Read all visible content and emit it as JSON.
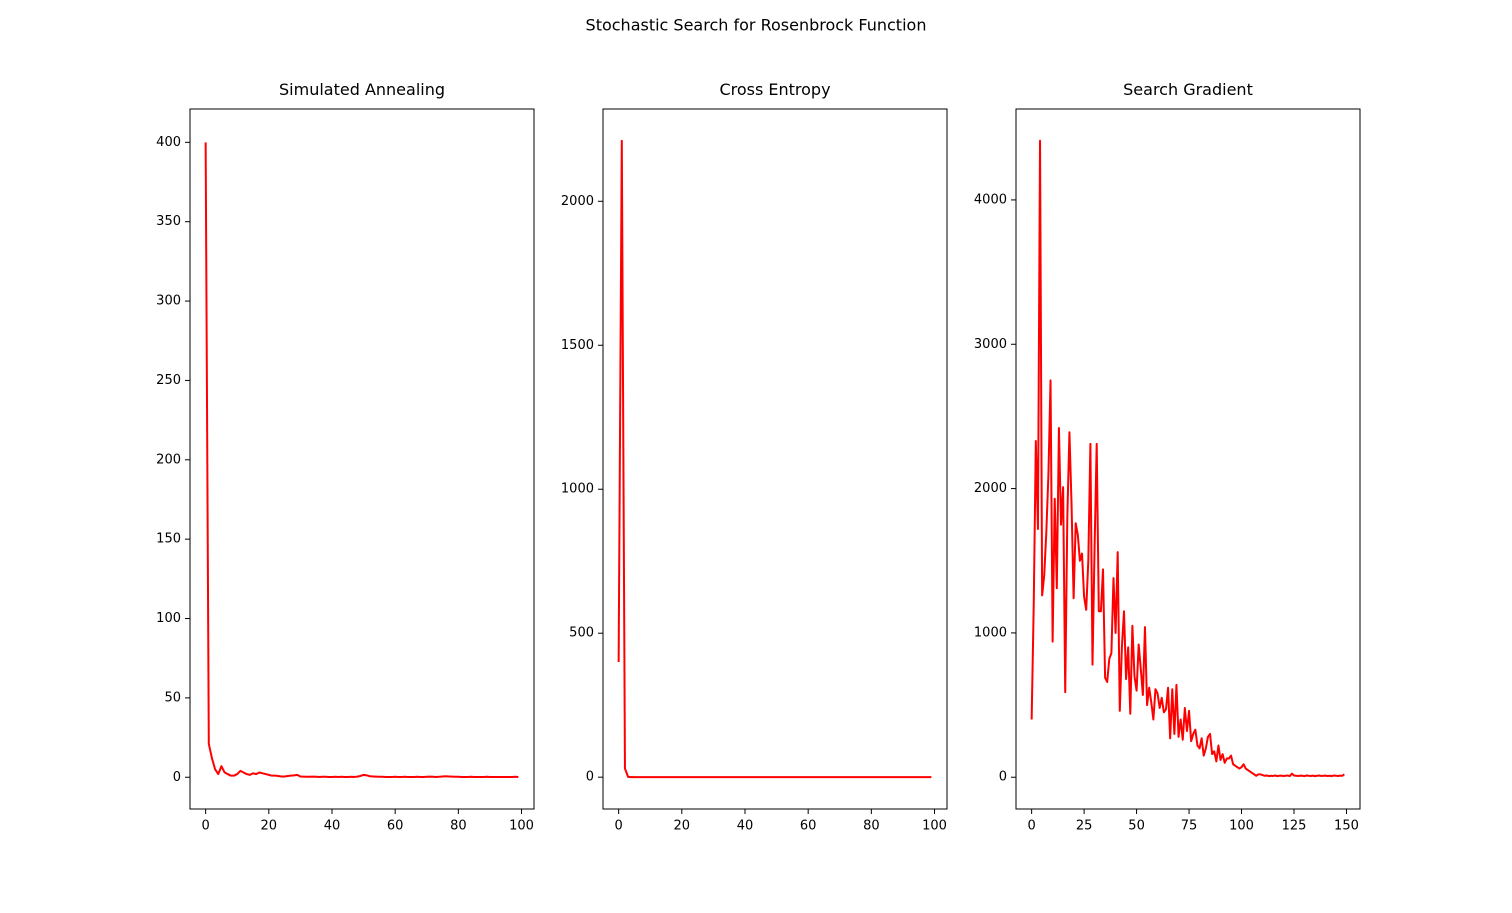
{
  "figure_title": "Stochastic Search for Rosenbrock Function",
  "chart_data": [
    {
      "type": "line",
      "title": "Simulated Annealing",
      "x": [
        0,
        1,
        2,
        3,
        4,
        5,
        6,
        7,
        8,
        9,
        10,
        11,
        12,
        13,
        14,
        15,
        16,
        17,
        18,
        19,
        20,
        21,
        22,
        23,
        24,
        25,
        26,
        27,
        28,
        29,
        30,
        31,
        32,
        33,
        34,
        35,
        36,
        37,
        38,
        39,
        40,
        41,
        42,
        43,
        44,
        45,
        46,
        47,
        48,
        49,
        50,
        51,
        52,
        53,
        54,
        55,
        56,
        57,
        58,
        59,
        60,
        61,
        62,
        63,
        64,
        65,
        66,
        67,
        68,
        69,
        70,
        71,
        72,
        73,
        74,
        75,
        76,
        77,
        78,
        79,
        80,
        81,
        82,
        83,
        84,
        85,
        86,
        87,
        88,
        89,
        90,
        91,
        92,
        93,
        94,
        95,
        96,
        97,
        98,
        99
      ],
      "series": [
        {
          "color": "#ff0000",
          "values": [
            400,
            21,
            12,
            5,
            2,
            7,
            3,
            2,
            1,
            1,
            2,
            4,
            3,
            2,
            1.5,
            2.5,
            2,
            3,
            2.5,
            2,
            1.5,
            1,
            1,
            0.8,
            0.5,
            0.5,
            0.8,
            1,
            1.2,
            1.5,
            0.5,
            0.4,
            0.3,
            0.3,
            0.4,
            0.3,
            0.2,
            0.3,
            0.3,
            0.2,
            0.2,
            0.3,
            0.2,
            0.3,
            0.2,
            0.2,
            0.3,
            0.2,
            0.4,
            0.8,
            1.5,
            1.2,
            0.6,
            0.5,
            0.4,
            0.3,
            0.3,
            0.2,
            0.2,
            0.2,
            0.3,
            0.2,
            0.2,
            0.3,
            0.2,
            0.2,
            0.2,
            0.3,
            0.2,
            0.2,
            0.3,
            0.4,
            0.3,
            0.2,
            0.3,
            0.5,
            0.6,
            0.5,
            0.4,
            0.3,
            0.3,
            0.2,
            0.2,
            0.2,
            0.3,
            0.2,
            0.2,
            0.2,
            0.2,
            0.3,
            0.2,
            0.2,
            0.2,
            0.2,
            0.2,
            0.2,
            0.2,
            0.2,
            0.3,
            0.2
          ]
        }
      ],
      "xlim": [
        -4.95,
        103.95
      ],
      "xticks": [
        0,
        20,
        40,
        60,
        80,
        100
      ],
      "ylim": [
        -20,
        421
      ],
      "yticks": [
        0,
        50,
        100,
        150,
        200,
        250,
        300,
        350,
        400
      ]
    },
    {
      "type": "line",
      "title": "Cross Entropy",
      "x": [
        0,
        1,
        2,
        3,
        4,
        5,
        6,
        7,
        8,
        9,
        10,
        11,
        12,
        13,
        14,
        15,
        16,
        17,
        18,
        19,
        20,
        21,
        22,
        23,
        24,
        25,
        26,
        27,
        28,
        29,
        30,
        31,
        32,
        33,
        34,
        35,
        36,
        37,
        38,
        39,
        40,
        41,
        42,
        43,
        44,
        45,
        46,
        47,
        48,
        49,
        50,
        51,
        52,
        53,
        54,
        55,
        56,
        57,
        58,
        59,
        60,
        61,
        62,
        63,
        64,
        65,
        66,
        67,
        68,
        69,
        70,
        71,
        72,
        73,
        74,
        75,
        76,
        77,
        78,
        79,
        80,
        81,
        82,
        83,
        84,
        85,
        86,
        87,
        88,
        89,
        90,
        91,
        92,
        93,
        94,
        95,
        96,
        97,
        98,
        99
      ],
      "series": [
        {
          "color": "#ff0000",
          "values": [
            400,
            2210,
            30,
            1,
            0,
            0,
            0,
            0,
            0,
            0,
            0,
            0,
            0,
            0,
            0,
            0,
            0,
            0,
            0,
            0,
            0,
            0,
            0,
            0,
            0,
            0,
            0,
            0,
            0,
            0,
            0,
            0,
            0,
            0,
            0,
            0,
            0,
            0,
            0,
            0,
            0,
            0,
            0,
            0,
            0,
            0,
            0,
            0,
            0,
            0,
            0,
            0,
            0,
            0,
            0,
            0,
            0,
            0,
            0,
            0,
            0,
            0,
            0,
            0,
            0,
            0,
            0,
            0,
            0,
            0,
            0,
            0,
            0,
            0,
            0,
            0,
            0,
            0,
            0,
            0,
            0,
            0,
            0,
            0,
            0,
            0,
            0,
            0,
            0,
            0,
            0,
            0,
            0,
            0,
            0,
            0,
            0,
            0,
            0,
            0
          ]
        }
      ],
      "xlim": [
        -4.95,
        103.95
      ],
      "xticks": [
        0,
        20,
        40,
        60,
        80,
        100
      ],
      "ylim": [
        -110.5,
        2320.5
      ],
      "yticks": [
        0,
        500,
        1000,
        1500,
        2000
      ]
    },
    {
      "type": "line",
      "title": "Search Gradient",
      "x": [
        0,
        1,
        2,
        3,
        4,
        5,
        6,
        7,
        8,
        9,
        10,
        11,
        12,
        13,
        14,
        15,
        16,
        17,
        18,
        19,
        20,
        21,
        22,
        23,
        24,
        25,
        26,
        27,
        28,
        29,
        30,
        31,
        32,
        33,
        34,
        35,
        36,
        37,
        38,
        39,
        40,
        41,
        42,
        43,
        44,
        45,
        46,
        47,
        48,
        49,
        50,
        51,
        52,
        53,
        54,
        55,
        56,
        57,
        58,
        59,
        60,
        61,
        62,
        63,
        64,
        65,
        66,
        67,
        68,
        69,
        70,
        71,
        72,
        73,
        74,
        75,
        76,
        77,
        78,
        79,
        80,
        81,
        82,
        83,
        84,
        85,
        86,
        87,
        88,
        89,
        90,
        91,
        92,
        93,
        94,
        95,
        96,
        97,
        98,
        99,
        100,
        101,
        102,
        103,
        104,
        105,
        106,
        107,
        108,
        109,
        110,
        111,
        112,
        113,
        114,
        115,
        116,
        117,
        118,
        119,
        120,
        121,
        122,
        123,
        124,
        125,
        126,
        127,
        128,
        129,
        130,
        131,
        132,
        133,
        134,
        135,
        136,
        137,
        138,
        139,
        140,
        141,
        142,
        143,
        144,
        145,
        146,
        147,
        148,
        149
      ],
      "series": [
        {
          "color": "#ff0000",
          "values": [
            400,
            1200,
            2330,
            1720,
            4410,
            1260,
            1400,
            1700,
            2100,
            2750,
            940,
            1930,
            1310,
            2420,
            1750,
            2010,
            590,
            1800,
            2390,
            1900,
            1240,
            1760,
            1680,
            1500,
            1550,
            1250,
            1160,
            1500,
            2310,
            780,
            1600,
            2310,
            1150,
            1150,
            1440,
            690,
            660,
            820,
            860,
            1380,
            1000,
            1560,
            460,
            900,
            1150,
            680,
            900,
            440,
            1050,
            700,
            600,
            920,
            750,
            570,
            1040,
            500,
            620,
            520,
            400,
            610,
            580,
            480,
            550,
            450,
            470,
            620,
            270,
            610,
            300,
            640,
            280,
            400,
            260,
            480,
            320,
            460,
            250,
            300,
            330,
            220,
            200,
            270,
            150,
            200,
            280,
            300,
            160,
            180,
            110,
            220,
            120,
            160,
            100,
            130,
            130,
            150,
            90,
            80,
            70,
            60,
            70,
            90,
            60,
            50,
            40,
            30,
            20,
            10,
            20,
            20,
            15,
            10,
            12,
            8,
            10,
            9,
            12,
            8,
            10,
            11,
            9,
            10,
            12,
            8,
            25,
            12,
            10,
            9,
            11,
            10,
            8,
            12,
            10,
            9,
            11,
            8,
            10,
            12,
            9,
            10,
            11,
            9,
            10,
            8,
            12,
            10,
            9,
            11,
            10,
            20
          ]
        }
      ],
      "xlim": [
        -7.45,
        156.45
      ],
      "xticks": [
        0,
        25,
        50,
        75,
        100,
        125,
        150
      ],
      "ylim": [
        -220,
        4630
      ],
      "yticks": [
        0,
        1000,
        2000,
        3000,
        4000
      ]
    }
  ]
}
